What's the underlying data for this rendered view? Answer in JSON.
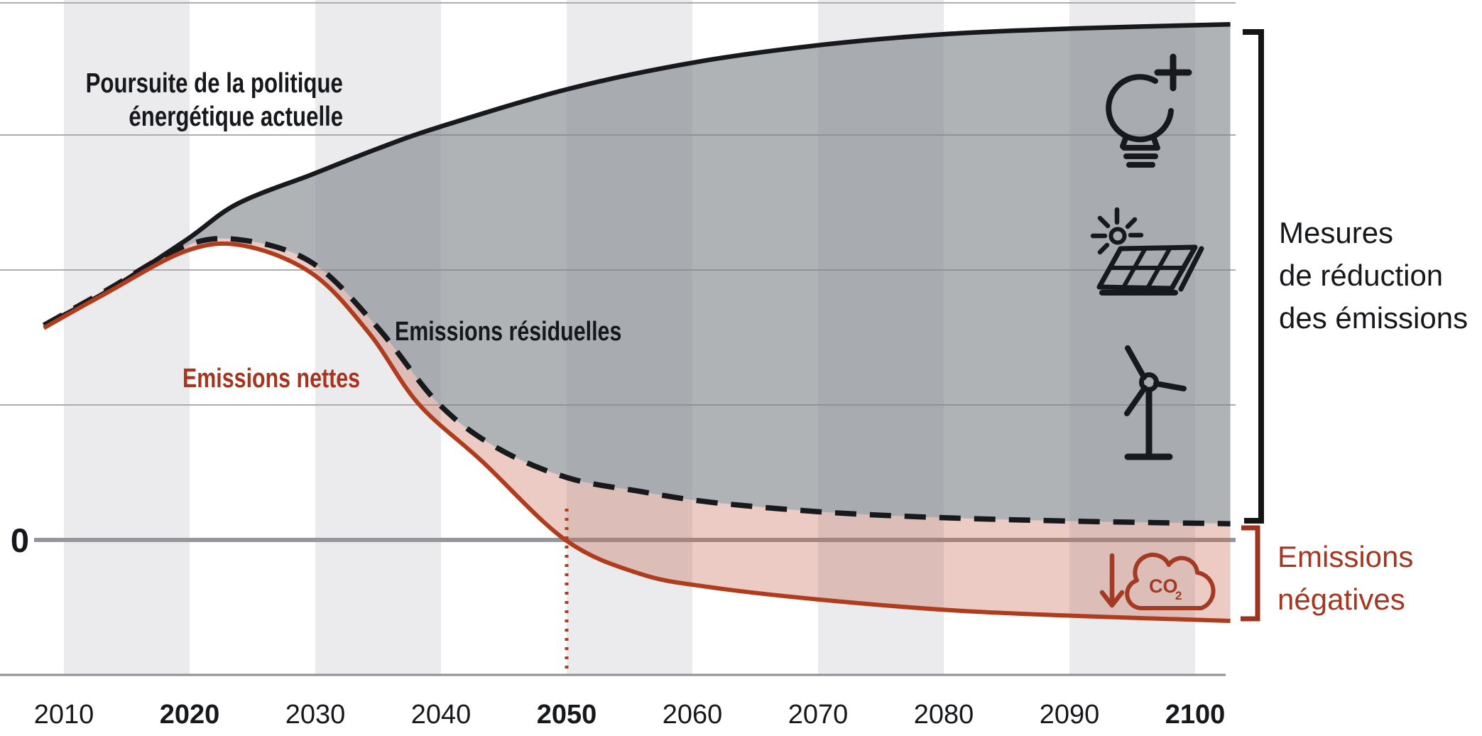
{
  "chart_data": {
    "type": "area",
    "title": "",
    "xlabel": "",
    "ylabel": "",
    "x_range": [
      2008.4,
      2102.8
    ],
    "ylim": [
      -1.0,
      4.1
    ],
    "value_unit": "relative emissions (1 = one gridline interval, 0 = net zero)",
    "grid": "horizontal gridlines at values 1,2,3,4 plus bold zero line",
    "gridline_values": [
      1,
      2,
      3
    ],
    "background": "alternating decade stripes",
    "legend_position": "labels drawn on chart",
    "x_ticks": [
      {
        "label": "2010",
        "year": 2010,
        "bold": false
      },
      {
        "label": "2020",
        "year": 2020,
        "bold": true
      },
      {
        "label": "2030",
        "year": 2030,
        "bold": false
      },
      {
        "label": "2040",
        "year": 2040,
        "bold": false
      },
      {
        "label": "2050",
        "year": 2050,
        "bold": true
      },
      {
        "label": "2060",
        "year": 2060,
        "bold": false
      },
      {
        "label": "2070",
        "year": 2070,
        "bold": false
      },
      {
        "label": "2080",
        "year": 2080,
        "bold": false
      },
      {
        "label": "2090",
        "year": 2090,
        "bold": false
      },
      {
        "label": "2100",
        "year": 2100,
        "bold": true
      }
    ],
    "series": [
      {
        "name": "Poursuite de la politique énergétique actuelle",
        "style": "solid-black",
        "points": [
          [
            2008.4,
            1.59
          ],
          [
            2013.4,
            1.84
          ],
          [
            2019.7,
            2.22
          ],
          [
            2023.8,
            2.49
          ],
          [
            2029.8,
            2.71
          ],
          [
            2035.0,
            2.9
          ],
          [
            2039.9,
            3.06
          ],
          [
            2050.1,
            3.34
          ],
          [
            2060.3,
            3.54
          ],
          [
            2070.5,
            3.67
          ],
          [
            2080.6,
            3.75
          ],
          [
            2090.8,
            3.79
          ],
          [
            2102.8,
            3.82
          ]
        ]
      },
      {
        "name": "Emissions résiduelles",
        "style": "dashed-black",
        "points": [
          [
            2008.4,
            1.59
          ],
          [
            2013.4,
            1.85
          ],
          [
            2019.7,
            2.18
          ],
          [
            2024.3,
            2.22
          ],
          [
            2029.8,
            2.05
          ],
          [
            2034.9,
            1.58
          ],
          [
            2039.8,
            1.01
          ],
          [
            2044.5,
            0.68
          ],
          [
            2050.1,
            0.46
          ],
          [
            2055.8,
            0.36
          ],
          [
            2061.4,
            0.28
          ],
          [
            2069.9,
            0.21
          ],
          [
            2078.4,
            0.17
          ],
          [
            2089.7,
            0.14
          ],
          [
            2102.8,
            0.12
          ]
        ]
      },
      {
        "name": "Emissions nettes",
        "style": "solid-red",
        "points": [
          [
            2008.4,
            1.57
          ],
          [
            2013.4,
            1.83
          ],
          [
            2019.7,
            2.14
          ],
          [
            2024.3,
            2.18
          ],
          [
            2029.8,
            1.97
          ],
          [
            2034.3,
            1.53
          ],
          [
            2038.2,
            1.01
          ],
          [
            2043.3,
            0.58
          ],
          [
            2049.9,
            0.0
          ],
          [
            2055.8,
            -0.25
          ],
          [
            2061.4,
            -0.35
          ],
          [
            2069.9,
            -0.44
          ],
          [
            2080.4,
            -0.52
          ],
          [
            2089.7,
            -0.56
          ],
          [
            2102.8,
            -0.6
          ]
        ]
      }
    ],
    "areas": [
      {
        "name": "Mesures de réduction des émissions",
        "between": [
          "Poursuite de la politique énergétique actuelle",
          "Emissions résiduelles"
        ],
        "color": "gray"
      },
      {
        "name": "Emissions négatives / nettes",
        "between": [
          "Emissions résiduelles",
          "Emissions nettes"
        ],
        "color": "pink"
      }
    ],
    "annotations": {
      "net_zero_marker_year": 2050,
      "zero_axis_label": "0"
    }
  },
  "labels": {
    "policy_line1": "Poursuite de la politique",
    "policy_line2": "énergétique actuelle",
    "residual": "Emissions résiduelles",
    "net": "Emissions nettes",
    "measures_line1": "Mesures",
    "measures_line2": "de réduction",
    "measures_line3": "des émissions",
    "negative_line1": "Emissions",
    "negative_line2": "négatives",
    "zero": "0",
    "co2_main": "CO",
    "co2_sub": "2"
  },
  "icons": [
    "lightbulb-plus-icon",
    "solar-panel-sun-icon",
    "wind-turbine-icon",
    "co2-cloud-down-arrow-icon"
  ],
  "colors": {
    "background": "#ffffff",
    "stripe": "#ebebed",
    "grid_line": "#aaacae",
    "zero_line": "#95979a",
    "axis_line": "#8c8e91",
    "curve_black": "#17191c",
    "curve_red": "#b03c1e",
    "dotted_red": "#b03c1e",
    "fill_gray": "rgba(128,132,137,0.62)",
    "fill_pink": "rgba(193,98,72,0.33)",
    "text_black": "#16181b",
    "text_red": "#a33722",
    "bracket_black": "#141414",
    "bracket_red": "#9d3420"
  }
}
